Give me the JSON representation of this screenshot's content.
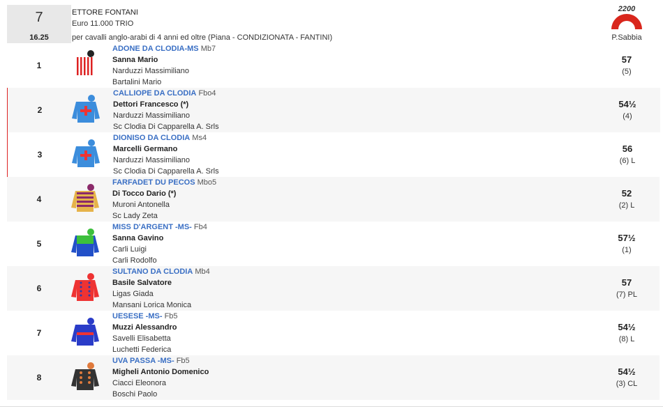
{
  "header": {
    "race_number": "7",
    "time": "16.25",
    "title": "ETTORE FONTANI",
    "prize": "Euro 11.000 TRIO",
    "conditions": "per cavalli anglo-arabi di 4 anni ed oltre (Piana -  CONDIZIONATA  - FANTINI)",
    "distance": "2200",
    "track": "P.Sabbia"
  },
  "runners": [
    {
      "number": "1",
      "horse": "ADONE DA CLODIA-MS",
      "info": "Mb7",
      "jockey": "Sanna Mario",
      "trainer": "Narduzzi Massimiliano",
      "owner": "Bartalini Mario",
      "weight": "57",
      "draw": "(5)"
    },
    {
      "number": "2",
      "horse": "CALLIOPE DA CLODIA",
      "info": "Fbo4",
      "jockey": "Dettori Francesco (*)",
      "trainer": "Narduzzi Massimiliano",
      "owner": "Sc Clodia Di Capparella A. Srls",
      "weight": "54½",
      "draw": "(4)"
    },
    {
      "number": "3",
      "horse": "DIONISO DA CLODIA",
      "info": "Ms4",
      "jockey": "Marcelli Germano",
      "trainer": "Narduzzi Massimiliano",
      "owner": "Sc Clodia Di Capparella A. Srls",
      "weight": "56",
      "draw": "(6) L"
    },
    {
      "number": "4",
      "horse": "FARFADET DU PECOS",
      "info": "Mbo5",
      "jockey": "Di Tocco Dario (*)",
      "trainer": "Muroni Antonella",
      "owner": "Sc Lady Zeta",
      "weight": "52",
      "draw": "(2) L"
    },
    {
      "number": "5",
      "horse": "MISS D'ARGENT -MS-",
      "info": "Fb4",
      "jockey": "Sanna Gavino",
      "trainer": "Carli Luigi",
      "owner": "Carli Rodolfo",
      "weight": "57½",
      "draw": "(1)"
    },
    {
      "number": "6",
      "horse": "SULTANO DA CLODIA",
      "info": "Mb4",
      "jockey": "Basile Salvatore",
      "trainer": "Ligas Giada",
      "owner": "Mansani Lorica Monica",
      "weight": "57",
      "draw": "(7) PL"
    },
    {
      "number": "7",
      "horse": "UESESE -MS-",
      "info": "Fb5",
      "jockey": "Muzzi Alessandro",
      "trainer": "Savelli Elisabetta",
      "owner": "Luchetti Federica",
      "weight": "54½",
      "draw": "(8) L"
    },
    {
      "number": "8",
      "horse": "UVA PASSA -MS-",
      "info": "Fb5",
      "jockey": "Migheli Antonio Domenico",
      "trainer": "Ciacci Eleonora",
      "owner": "Boschi Paolo",
      "weight": "54½",
      "draw": "(3) CL"
    }
  ]
}
